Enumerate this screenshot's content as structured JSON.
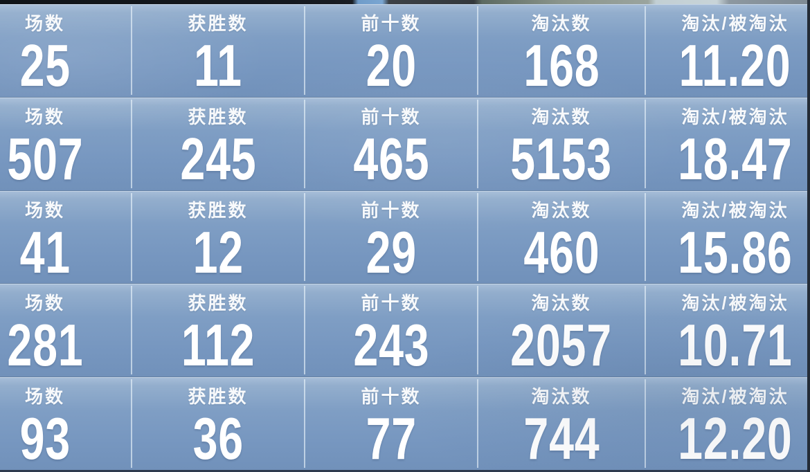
{
  "screen": {
    "name": "player-stats-grid"
  },
  "columns": [
    {
      "key": "matches",
      "label": "场数"
    },
    {
      "key": "wins",
      "label": "获胜数"
    },
    {
      "key": "top10",
      "label": "前十数"
    },
    {
      "key": "eliminations",
      "label": "淘汰数"
    },
    {
      "key": "kd_ratio",
      "label": "淘汰/被淘汰"
    }
  ],
  "grid": {
    "rows": [
      {
        "cells": [
          {
            "label": "场数",
            "value": "25"
          },
          {
            "label": "获胜数",
            "value": "11"
          },
          {
            "label": "前十数",
            "value": "20"
          },
          {
            "label": "淘汰数",
            "value": "168"
          },
          {
            "label": "淘汰/被淘汰",
            "value": "11.20"
          }
        ]
      },
      {
        "cells": [
          {
            "label": "场数",
            "value": "507"
          },
          {
            "label": "获胜数",
            "value": "245"
          },
          {
            "label": "前十数",
            "value": "465"
          },
          {
            "label": "淘汰数",
            "value": "5153"
          },
          {
            "label": "淘汰/被淘汰",
            "value": "18.47"
          }
        ]
      },
      {
        "cells": [
          {
            "label": "场数",
            "value": "41"
          },
          {
            "label": "获胜数",
            "value": "12"
          },
          {
            "label": "前十数",
            "value": "29"
          },
          {
            "label": "淘汰数",
            "value": "460"
          },
          {
            "label": "淘汰/被淘汰",
            "value": "15.86"
          }
        ]
      },
      {
        "cells": [
          {
            "label": "场数",
            "value": "281"
          },
          {
            "label": "获胜数",
            "value": "112"
          },
          {
            "label": "前十数",
            "value": "243"
          },
          {
            "label": "淘汰数",
            "value": "2057"
          },
          {
            "label": "淘汰/被淘汰",
            "value": "10.71"
          }
        ]
      },
      {
        "cells": [
          {
            "label": "场数",
            "value": "93"
          },
          {
            "label": "获胜数",
            "value": "36"
          },
          {
            "label": "前十数",
            "value": "77"
          },
          {
            "label": "淘汰数",
            "value": "744"
          },
          {
            "label": "淘汰/被淘汰",
            "value": "12.20"
          }
        ]
      }
    ]
  },
  "colors": {
    "cell_top": "#a7bed9",
    "cell_bottom": "#7191ba",
    "divider": "#ecf5fc",
    "text": "#ffffff",
    "edge_dark": "#15191f",
    "bottom_edge": "#2e3a4e"
  }
}
